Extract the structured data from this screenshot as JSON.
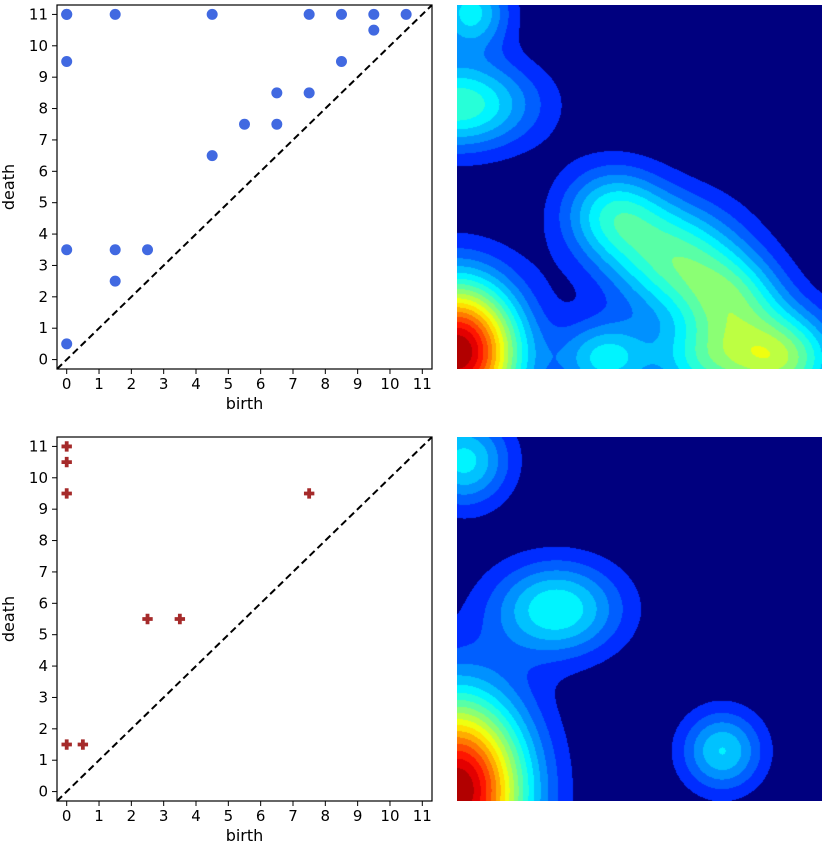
{
  "chart_data": [
    {
      "type": "scatter",
      "title": "",
      "xlabel": "birth",
      "ylabel": "death",
      "xlim": [
        -0.3,
        11.3
      ],
      "ylim": [
        -0.3,
        11.3
      ],
      "xticks": [
        0,
        1,
        2,
        3,
        4,
        5,
        6,
        7,
        8,
        9,
        10,
        11
      ],
      "yticks": [
        0,
        1,
        2,
        3,
        4,
        5,
        6,
        7,
        8,
        9,
        10,
        11
      ],
      "diagonal": "dashed",
      "marker": "circle",
      "color": "#4169E1",
      "series": [
        {
          "points": [
            [
              0,
              0.5
            ],
            [
              0,
              3.5
            ],
            [
              0,
              9.5
            ],
            [
              0,
              11
            ],
            [
              0,
              11
            ],
            [
              1.5,
              2.5
            ],
            [
              1.5,
              3.5
            ],
            [
              1.5,
              11
            ],
            [
              2.5,
              3.5
            ],
            [
              4.5,
              6.5
            ],
            [
              4.5,
              11
            ],
            [
              5.5,
              7.5
            ],
            [
              6.5,
              7.5
            ],
            [
              6.5,
              8.5
            ],
            [
              7.5,
              8.5
            ],
            [
              7.5,
              11
            ],
            [
              8.5,
              9.5
            ],
            [
              8.5,
              11
            ],
            [
              9.5,
              10.5
            ],
            [
              9.5,
              11
            ],
            [
              10.5,
              11
            ]
          ]
        }
      ]
    },
    {
      "type": "heatmap",
      "title": "",
      "colormap": "jet",
      "background": "#00007F",
      "blobs": [
        {
          "x": 0.0,
          "y": 0.5,
          "sx": 1.3,
          "sy": 1.5,
          "amp": 1.0
        },
        {
          "x": 0.0,
          "y": 8.0,
          "sx": 1.6,
          "sy": 0.95,
          "amp": 0.38
        },
        {
          "x": 0.4,
          "y": 10.8,
          "sx": 0.8,
          "sy": 0.8,
          "amp": 0.3
        },
        {
          "x": 4.7,
          "y": 4.7,
          "sx": 1.1,
          "sy": 1.0,
          "amp": 0.3
        },
        {
          "x": 6.6,
          "y": 3.3,
          "sx": 1.4,
          "sy": 1.2,
          "amp": 0.38
        },
        {
          "x": 8.3,
          "y": 2.1,
          "sx": 1.1,
          "sy": 0.95,
          "amp": 0.3
        },
        {
          "x": 4.5,
          "y": 0.3,
          "sx": 1.0,
          "sy": 0.8,
          "amp": 0.3
        },
        {
          "x": 7.3,
          "y": 0.2,
          "sx": 1.0,
          "sy": 0.9,
          "amp": 0.24
        },
        {
          "x": 9.6,
          "y": 0.3,
          "sx": 1.3,
          "sy": 1.0,
          "amp": 0.5
        }
      ]
    },
    {
      "type": "scatter",
      "title": "",
      "xlabel": "birth",
      "ylabel": "death",
      "xlim": [
        -0.3,
        11.3
      ],
      "ylim": [
        -0.3,
        11.3
      ],
      "xticks": [
        0,
        1,
        2,
        3,
        4,
        5,
        6,
        7,
        8,
        9,
        10,
        11
      ],
      "yticks": [
        0,
        1,
        2,
        3,
        4,
        5,
        6,
        7,
        8,
        9,
        10,
        11
      ],
      "diagonal": "dashed",
      "marker": "plus",
      "color": "#A52A2A",
      "series": [
        {
          "points": [
            [
              0,
              11
            ],
            [
              0,
              10.5
            ],
            [
              0,
              9.5
            ],
            [
              0,
              1.5
            ],
            [
              0.5,
              1.5
            ],
            [
              2.5,
              5.5
            ],
            [
              3.5,
              5.5
            ],
            [
              7.5,
              9.5
            ]
          ]
        }
      ]
    },
    {
      "type": "heatmap",
      "title": "",
      "colormap": "jet",
      "background": "#00007F",
      "blobs": [
        {
          "x": 0.0,
          "y": 0.3,
          "sx": 1.45,
          "sy": 2.0,
          "amp": 1.0
        },
        {
          "x": 0.2,
          "y": 10.3,
          "sx": 0.95,
          "sy": 0.95,
          "amp": 0.3
        },
        {
          "x": 3.0,
          "y": 5.8,
          "sx": 1.35,
          "sy": 1.0,
          "amp": 0.33
        },
        {
          "x": 8.0,
          "y": 1.5,
          "sx": 0.85,
          "sy": 0.85,
          "amp": 0.28
        }
      ]
    }
  ]
}
